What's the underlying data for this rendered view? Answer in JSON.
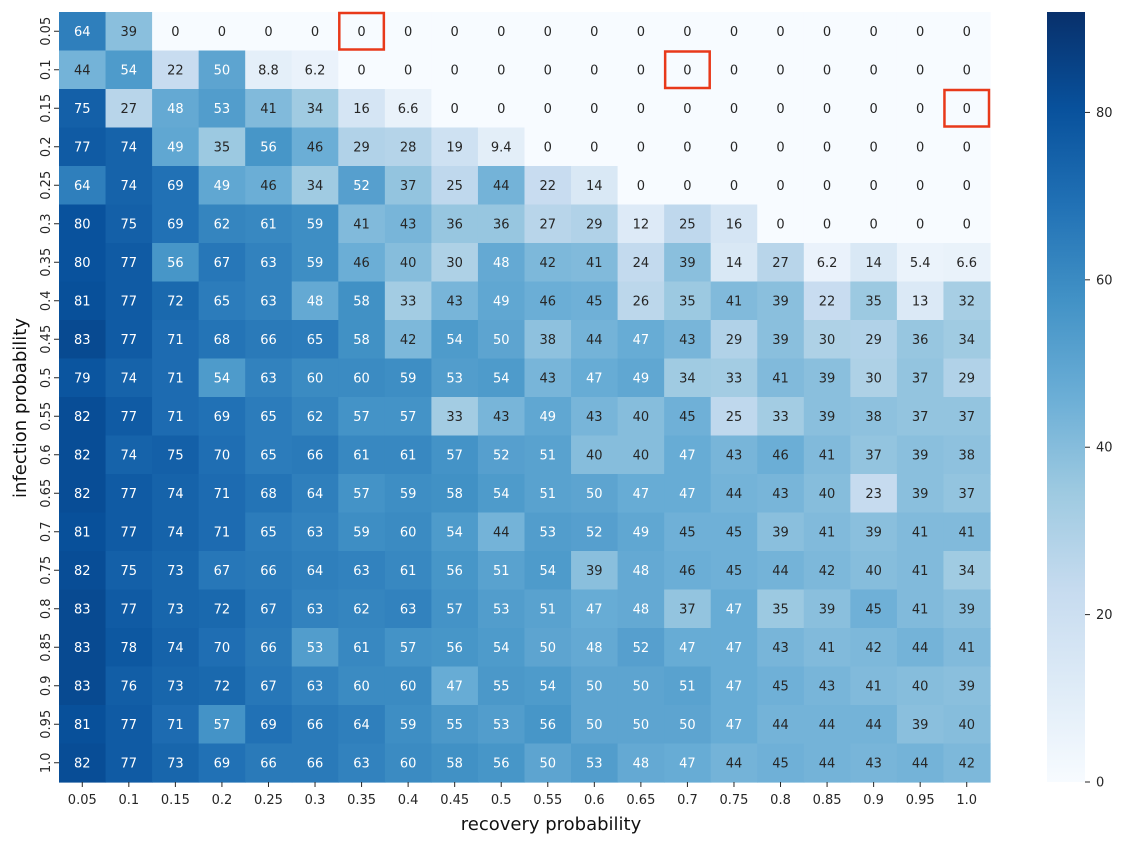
{
  "chart_data": {
    "type": "heatmap",
    "title": "",
    "xlabel": "recovery probability",
    "ylabel": "infection probability",
    "x_categories": [
      "0.05",
      "0.1",
      "0.15",
      "0.2",
      "0.25",
      "0.3",
      "0.35",
      "0.4",
      "0.45",
      "0.5",
      "0.55",
      "0.6",
      "0.65",
      "0.7",
      "0.75",
      "0.8",
      "0.85",
      "0.9",
      "0.95",
      "1.0"
    ],
    "y_categories": [
      "0.05",
      "0.1",
      "0.15",
      "0.2",
      "0.25",
      "0.3",
      "0.35",
      "0.4",
      "0.45",
      "0.5",
      "0.55",
      "0.6",
      "0.65",
      "0.7",
      "0.75",
      "0.8",
      "0.85",
      "0.9",
      "0.95",
      "1.0"
    ],
    "value_labels": [
      [
        "64",
        "39",
        "0",
        "0",
        "0",
        "0",
        "0",
        "0",
        "0",
        "0",
        "0",
        "0",
        "0",
        "0",
        "0",
        "0",
        "0",
        "0",
        "0",
        "0"
      ],
      [
        "44",
        "54",
        "22",
        "50",
        "8.8",
        "6.2",
        "0",
        "0",
        "0",
        "0",
        "0",
        "0",
        "0",
        "0",
        "0",
        "0",
        "0",
        "0",
        "0",
        "0"
      ],
      [
        "75",
        "27",
        "48",
        "53",
        "41",
        "34",
        "16",
        "6.6",
        "0",
        "0",
        "0",
        "0",
        "0",
        "0",
        "0",
        "0",
        "0",
        "0",
        "0",
        "0"
      ],
      [
        "77",
        "74",
        "49",
        "35",
        "56",
        "46",
        "29",
        "28",
        "19",
        "9.4",
        "0",
        "0",
        "0",
        "0",
        "0",
        "0",
        "0",
        "0",
        "0",
        "0"
      ],
      [
        "64",
        "74",
        "69",
        "49",
        "46",
        "34",
        "52",
        "37",
        "25",
        "44",
        "22",
        "14",
        "0",
        "0",
        "0",
        "0",
        "0",
        "0",
        "0",
        "0"
      ],
      [
        "80",
        "75",
        "69",
        "62",
        "61",
        "59",
        "41",
        "43",
        "36",
        "36",
        "27",
        "29",
        "12",
        "25",
        "16",
        "0",
        "0",
        "0",
        "0",
        "0"
      ],
      [
        "80",
        "77",
        "56",
        "67",
        "63",
        "59",
        "46",
        "40",
        "30",
        "48",
        "42",
        "41",
        "24",
        "39",
        "14",
        "27",
        "6.2",
        "14",
        "5.4",
        "6.6"
      ],
      [
        "81",
        "77",
        "72",
        "65",
        "63",
        "48",
        "58",
        "33",
        "43",
        "49",
        "46",
        "45",
        "26",
        "35",
        "41",
        "39",
        "22",
        "35",
        "13",
        "32"
      ],
      [
        "83",
        "77",
        "71",
        "68",
        "66",
        "65",
        "58",
        "42",
        "54",
        "50",
        "38",
        "44",
        "47",
        "43",
        "29",
        "39",
        "30",
        "29",
        "36",
        "34"
      ],
      [
        "79",
        "74",
        "71",
        "54",
        "63",
        "60",
        "60",
        "59",
        "53",
        "54",
        "43",
        "47",
        "49",
        "34",
        "33",
        "41",
        "39",
        "30",
        "37",
        "29"
      ],
      [
        "82",
        "77",
        "71",
        "69",
        "65",
        "62",
        "57",
        "57",
        "33",
        "43",
        "49",
        "43",
        "40",
        "45",
        "25",
        "33",
        "39",
        "38",
        "37",
        "37"
      ],
      [
        "82",
        "74",
        "75",
        "70",
        "65",
        "66",
        "61",
        "61",
        "57",
        "52",
        "51",
        "40",
        "40",
        "47",
        "43",
        "46",
        "41",
        "37",
        "39",
        "38"
      ],
      [
        "82",
        "77",
        "74",
        "71",
        "68",
        "64",
        "57",
        "59",
        "58",
        "54",
        "51",
        "50",
        "47",
        "47",
        "44",
        "43",
        "40",
        "23",
        "39",
        "37"
      ],
      [
        "81",
        "77",
        "74",
        "71",
        "65",
        "63",
        "59",
        "60",
        "54",
        "44",
        "53",
        "52",
        "49",
        "45",
        "45",
        "39",
        "41",
        "39",
        "41",
        "41"
      ],
      [
        "82",
        "75",
        "73",
        "67",
        "66",
        "64",
        "63",
        "61",
        "56",
        "51",
        "54",
        "39",
        "48",
        "46",
        "45",
        "44",
        "42",
        "40",
        "41",
        "34"
      ],
      [
        "83",
        "77",
        "73",
        "72",
        "67",
        "63",
        "62",
        "63",
        "57",
        "53",
        "51",
        "47",
        "48",
        "37",
        "47",
        "35",
        "39",
        "45",
        "41",
        "39"
      ],
      [
        "83",
        "78",
        "74",
        "70",
        "66",
        "53",
        "61",
        "57",
        "56",
        "54",
        "50",
        "48",
        "52",
        "47",
        "47",
        "43",
        "41",
        "42",
        "44",
        "41"
      ],
      [
        "83",
        "76",
        "73",
        "72",
        "67",
        "63",
        "60",
        "60",
        "47",
        "55",
        "54",
        "50",
        "50",
        "51",
        "47",
        "45",
        "43",
        "41",
        "40",
        "39"
      ],
      [
        "81",
        "77",
        "71",
        "57",
        "69",
        "66",
        "64",
        "59",
        "55",
        "53",
        "56",
        "50",
        "50",
        "50",
        "47",
        "44",
        "44",
        "44",
        "39",
        "40"
      ],
      [
        "82",
        "77",
        "73",
        "69",
        "66",
        "66",
        "63",
        "60",
        "58",
        "56",
        "50",
        "53",
        "48",
        "47",
        "44",
        "45",
        "44",
        "43",
        "44",
        "42"
      ]
    ],
    "colorbar": {
      "min": 0,
      "max": 92,
      "ticks": [
        "0",
        "20",
        "40",
        "60",
        "80"
      ],
      "colormap": "Blues"
    },
    "highlighted_cells": [
      {
        "x": "0.35",
        "y": "0.05"
      },
      {
        "x": "0.7",
        "y": "0.1"
      },
      {
        "x": "1.0",
        "y": "0.15"
      }
    ],
    "highlight_color": "#e8391a"
  }
}
